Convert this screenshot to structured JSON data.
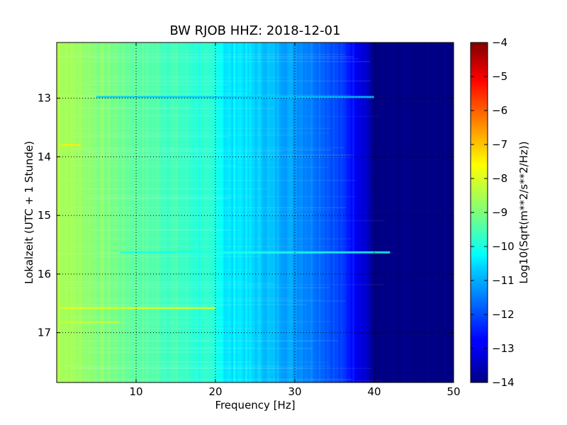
{
  "chart_data": {
    "type": "heatmap",
    "title": "BW RJOB HHZ: 2018-12-01",
    "xlabel": "Frequency [Hz]",
    "ylabel": "Lokalzeit (UTC + 1 Stunde)",
    "xlim": [
      0,
      50
    ],
    "ylim": [
      12.05,
      17.85
    ],
    "x_ticks": [
      10,
      20,
      30,
      40,
      50
    ],
    "y_ticks": [
      13,
      14,
      15,
      16,
      17
    ],
    "grid": true,
    "colorbar": {
      "label": "Log10(Sqrt(m**2/s**2/Hz))",
      "range": [
        -14,
        -4
      ],
      "ticks": [
        -4,
        -5,
        -6,
        -7,
        -8,
        -9,
        -10,
        -11,
        -12,
        -13,
        -14
      ],
      "colormap": "jet"
    },
    "spectrum_profile": {
      "frequency_hz": [
        0,
        5,
        10,
        15,
        20,
        22,
        25,
        30,
        33,
        35,
        37,
        39,
        40,
        45,
        50
      ],
      "level": [
        -8.5,
        -8.9,
        -9.3,
        -9.6,
        -10.0,
        -10.3,
        -10.7,
        -11.2,
        -11.6,
        -12.0,
        -12.5,
        -13.2,
        -14.0,
        -14.0,
        -14.0
      ]
    },
    "events": [
      {
        "time": 15.63,
        "freq_range": [
          8,
          42
        ],
        "level": -10.0
      },
      {
        "time": 16.58,
        "freq_range": [
          0.5,
          20
        ],
        "level": -8.0
      },
      {
        "time": 16.82,
        "freq_range": [
          0.5,
          8
        ],
        "level": -8.3
      },
      {
        "time": 13.8,
        "freq_range": [
          0.5,
          3
        ],
        "level": -7.6
      },
      {
        "time": 12.98,
        "freq_range": [
          5,
          40
        ],
        "level": -10.8
      }
    ]
  },
  "labels": {
    "title": "BW RJOB HHZ: 2018-12-01",
    "xlabel": "Frequency [Hz]",
    "ylabel": "Lokalzeit (UTC + 1 Stunde)",
    "colorbar_label": "Log10(Sqrt(m**2/s**2/Hz))"
  }
}
